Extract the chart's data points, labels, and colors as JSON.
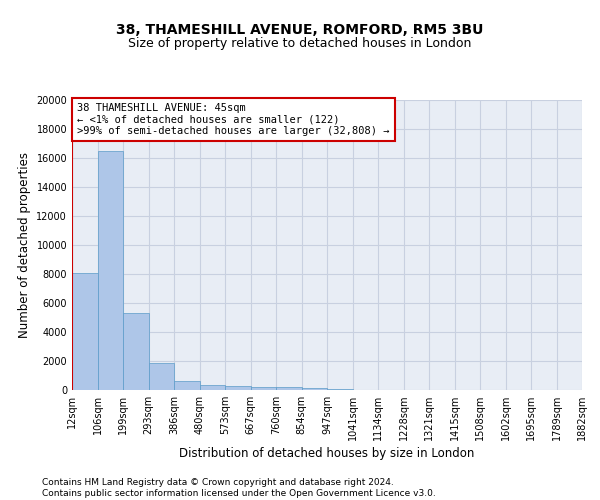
{
  "title": "38, THAMESHILL AVENUE, ROMFORD, RM5 3BU",
  "subtitle": "Size of property relative to detached houses in London",
  "xlabel": "Distribution of detached houses by size in London",
  "ylabel": "Number of detached properties",
  "bar_values": [
    8100,
    16500,
    5300,
    1850,
    650,
    350,
    270,
    220,
    200,
    150,
    80,
    30,
    15,
    5,
    3,
    2,
    1,
    1,
    0,
    0
  ],
  "bar_labels": [
    "12sqm",
    "106sqm",
    "199sqm",
    "293sqm",
    "386sqm",
    "480sqm",
    "573sqm",
    "667sqm",
    "760sqm",
    "854sqm",
    "947sqm",
    "1041sqm",
    "1134sqm",
    "1228sqm",
    "1321sqm",
    "1415sqm",
    "1508sqm",
    "1602sqm",
    "1695sqm",
    "1789sqm",
    "1882sqm"
  ],
  "bar_color": "#aec6e8",
  "bar_edgecolor": "#5a9bc8",
  "grid_color": "#c8d0e0",
  "background_color": "#e8edf5",
  "ylim": [
    0,
    20000
  ],
  "yticks": [
    0,
    2000,
    4000,
    6000,
    8000,
    10000,
    12000,
    14000,
    16000,
    18000,
    20000
  ],
  "vline_color": "#cc0000",
  "annotation_text": "38 THAMESHILL AVENUE: 45sqm\n← <1% of detached houses are smaller (122)\n>99% of semi-detached houses are larger (32,808) →",
  "annotation_box_color": "#cc0000",
  "footer_line1": "Contains HM Land Registry data © Crown copyright and database right 2024.",
  "footer_line2": "Contains public sector information licensed under the Open Government Licence v3.0.",
  "title_fontsize": 10,
  "subtitle_fontsize": 9,
  "xlabel_fontsize": 8.5,
  "ylabel_fontsize": 8.5,
  "tick_fontsize": 7,
  "annotation_fontsize": 7.5,
  "footer_fontsize": 6.5
}
